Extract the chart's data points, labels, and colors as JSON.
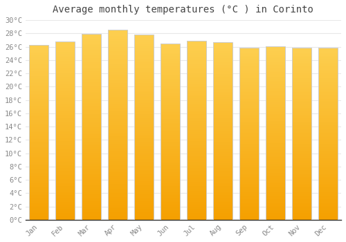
{
  "title": "Average monthly temperatures (°C ) in Corinto",
  "months": [
    "Jan",
    "Feb",
    "Mar",
    "Apr",
    "May",
    "Jun",
    "Jul",
    "Aug",
    "Sep",
    "Oct",
    "Nov",
    "Dec"
  ],
  "values": [
    26.3,
    26.8,
    27.9,
    28.5,
    27.8,
    26.5,
    26.9,
    26.7,
    25.9,
    26.1,
    25.9,
    25.9
  ],
  "bar_color_top": "#FDCF50",
  "bar_color_bottom": "#F5A000",
  "background_color": "#ffffff",
  "plot_bg_color": "#ffffff",
  "ylim": [
    0,
    30
  ],
  "yticks": [
    0,
    2,
    4,
    6,
    8,
    10,
    12,
    14,
    16,
    18,
    20,
    22,
    24,
    26,
    28,
    30
  ],
  "title_fontsize": 10,
  "tick_fontsize": 7.5,
  "grid_color": "#e8e8e8",
  "bar_edge_color": "#cccccc",
  "axis_color": "#333333",
  "tick_color": "#888888"
}
